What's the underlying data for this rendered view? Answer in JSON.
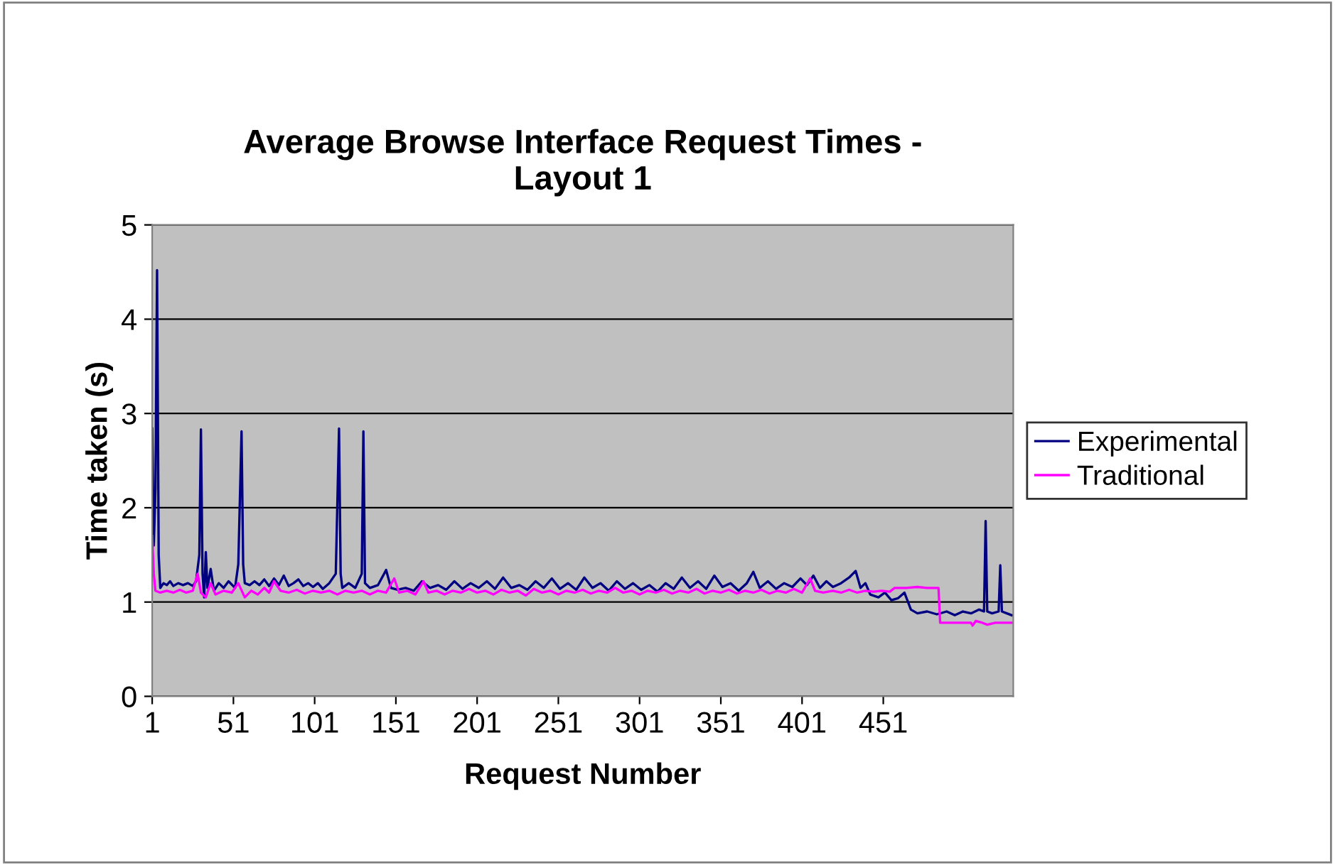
{
  "chart_data": {
    "type": "line",
    "title": "Average Browse Interface Request Times -\nLayout 1",
    "xlabel": "Request Number",
    "ylabel": "Time taken (s)",
    "xlim": [
      1,
      531
    ],
    "xticks": [
      1,
      51,
      101,
      151,
      201,
      251,
      301,
      351,
      401,
      451
    ],
    "ylim": [
      0,
      5
    ],
    "yticks": [
      0,
      1,
      2,
      3,
      4,
      5
    ],
    "grid": "y",
    "legend": "right",
    "marker": "none",
    "line_style": "solid",
    "series": [
      {
        "name": "Experimental",
        "color": "#000080",
        "x": [
          1,
          2,
          3,
          4,
          5,
          6,
          8,
          10,
          12,
          14,
          17,
          20,
          23,
          26,
          28,
          30,
          31,
          32,
          33,
          34,
          35,
          37,
          39,
          42,
          45,
          48,
          52,
          54,
          56,
          57,
          58,
          61,
          64,
          67,
          70,
          73,
          76,
          79,
          82,
          85,
          88,
          91,
          94,
          97,
          100,
          103,
          106,
          110,
          114,
          116,
          117,
          118,
          122,
          126,
          130,
          131,
          132,
          135,
          140,
          145,
          148,
          152,
          157,
          162,
          167,
          172,
          177,
          182,
          187,
          192,
          197,
          202,
          207,
          212,
          217,
          222,
          227,
          232,
          237,
          242,
          247,
          252,
          257,
          262,
          267,
          272,
          277,
          282,
          287,
          292,
          297,
          302,
          307,
          312,
          317,
          322,
          327,
          332,
          337,
          342,
          347,
          352,
          357,
          362,
          367,
          371,
          375,
          380,
          385,
          390,
          395,
          400,
          404,
          408,
          412,
          416,
          420,
          425,
          430,
          434,
          437,
          440,
          443,
          448,
          452,
          456,
          460,
          464,
          468,
          472,
          478,
          484,
          490,
          495,
          500,
          505,
          510,
          513,
          514,
          515,
          518,
          522,
          523,
          524,
          527,
          530
        ],
        "values": [
          2.84,
          1.6,
          2.2,
          4.52,
          1.5,
          1.15,
          1.2,
          1.18,
          1.22,
          1.17,
          1.2,
          1.18,
          1.2,
          1.17,
          1.22,
          1.5,
          2.83,
          1.3,
          1.05,
          1.53,
          1.15,
          1.35,
          1.12,
          1.2,
          1.15,
          1.22,
          1.15,
          1.4,
          2.81,
          1.4,
          1.2,
          1.18,
          1.22,
          1.18,
          1.24,
          1.17,
          1.25,
          1.18,
          1.28,
          1.17,
          1.2,
          1.24,
          1.17,
          1.2,
          1.16,
          1.2,
          1.14,
          1.2,
          1.3,
          2.84,
          1.3,
          1.15,
          1.2,
          1.15,
          1.3,
          2.81,
          1.2,
          1.15,
          1.18,
          1.34,
          1.15,
          1.13,
          1.15,
          1.12,
          1.22,
          1.15,
          1.18,
          1.13,
          1.22,
          1.14,
          1.2,
          1.15,
          1.22,
          1.14,
          1.26,
          1.15,
          1.18,
          1.13,
          1.22,
          1.15,
          1.25,
          1.14,
          1.2,
          1.13,
          1.26,
          1.15,
          1.2,
          1.12,
          1.22,
          1.14,
          1.2,
          1.13,
          1.18,
          1.11,
          1.2,
          1.14,
          1.26,
          1.15,
          1.22,
          1.14,
          1.28,
          1.16,
          1.2,
          1.12,
          1.2,
          1.32,
          1.15,
          1.22,
          1.14,
          1.2,
          1.16,
          1.25,
          1.18,
          1.28,
          1.15,
          1.22,
          1.16,
          1.2,
          1.26,
          1.33,
          1.15,
          1.2,
          1.08,
          1.05,
          1.1,
          1.02,
          1.04,
          1.1,
          0.92,
          0.88,
          0.9,
          0.87,
          0.9,
          0.86,
          0.9,
          0.88,
          0.92,
          0.9,
          1.86,
          0.9,
          0.88,
          0.9,
          1.39,
          0.9,
          0.88,
          0.86
        ]
      },
      {
        "name": "Traditional",
        "color": "#ff00ff",
        "x": [
          1,
          2,
          3,
          6,
          10,
          14,
          18,
          22,
          26,
          29,
          31,
          34,
          37,
          40,
          45,
          50,
          54,
          58,
          62,
          66,
          70,
          73,
          76,
          80,
          85,
          90,
          95,
          100,
          105,
          110,
          115,
          120,
          125,
          130,
          135,
          140,
          145,
          150,
          153,
          158,
          163,
          168,
          171,
          176,
          181,
          186,
          191,
          196,
          201,
          206,
          211,
          216,
          221,
          226,
          231,
          236,
          241,
          246,
          251,
          256,
          261,
          266,
          271,
          276,
          281,
          286,
          291,
          296,
          301,
          306,
          311,
          316,
          321,
          326,
          331,
          336,
          341,
          346,
          351,
          356,
          361,
          366,
          371,
          376,
          381,
          386,
          391,
          396,
          401,
          406,
          409,
          414,
          420,
          425,
          430,
          435,
          440,
          445,
          450,
          455,
          458,
          465,
          472,
          478,
          485,
          486,
          495,
          505,
          506,
          508,
          512,
          515,
          520,
          530
        ],
        "values": [
          1.7,
          1.3,
          1.12,
          1.1,
          1.12,
          1.1,
          1.13,
          1.1,
          1.12,
          1.3,
          1.1,
          1.05,
          1.2,
          1.08,
          1.12,
          1.1,
          1.2,
          1.05,
          1.12,
          1.08,
          1.15,
          1.1,
          1.22,
          1.12,
          1.1,
          1.13,
          1.09,
          1.12,
          1.1,
          1.12,
          1.08,
          1.12,
          1.1,
          1.12,
          1.08,
          1.12,
          1.1,
          1.25,
          1.1,
          1.12,
          1.08,
          1.22,
          1.1,
          1.12,
          1.08,
          1.12,
          1.1,
          1.14,
          1.1,
          1.12,
          1.08,
          1.13,
          1.1,
          1.12,
          1.07,
          1.14,
          1.1,
          1.12,
          1.08,
          1.12,
          1.1,
          1.13,
          1.09,
          1.12,
          1.1,
          1.15,
          1.1,
          1.12,
          1.08,
          1.12,
          1.1,
          1.13,
          1.09,
          1.12,
          1.1,
          1.14,
          1.09,
          1.12,
          1.1,
          1.13,
          1.09,
          1.12,
          1.1,
          1.13,
          1.09,
          1.12,
          1.1,
          1.14,
          1.1,
          1.25,
          1.12,
          1.1,
          1.12,
          1.1,
          1.13,
          1.1,
          1.12,
          1.11,
          1.12,
          1.11,
          1.15,
          1.15,
          1.16,
          1.15,
          1.15,
          0.78,
          0.78,
          0.78,
          0.75,
          0.8,
          0.78,
          0.76,
          0.78,
          0.78
        ]
      }
    ]
  }
}
